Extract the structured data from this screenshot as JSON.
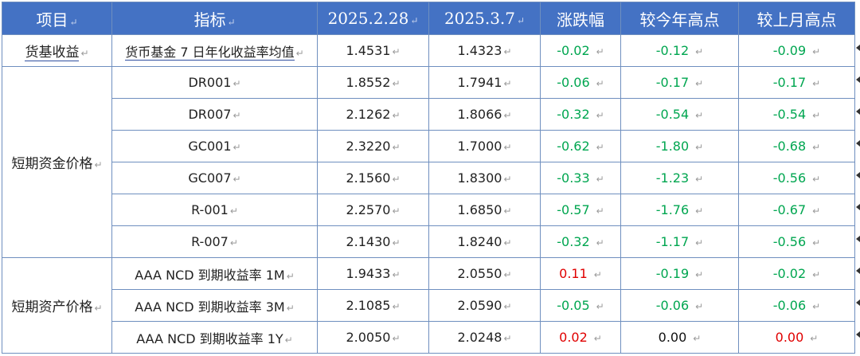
{
  "header": {
    "col_item": "项目",
    "col_indicator": "指标",
    "col_date1": "2025.2.28",
    "col_date2": "2025.3.7",
    "col_change": "涨跌幅",
    "col_vs_year_high": "较今年高点",
    "col_vs_month_high": "较上月高点"
  },
  "return_mark": "↵",
  "groups": [
    {
      "category": "货基收益",
      "rows": [
        {
          "indicator": "货币基金 7 日年化收益率均值",
          "date1": "1.4531",
          "date2": "1.4323",
          "change": "-0.02",
          "change_color": "green",
          "vs_year_high": "-0.12",
          "vs_year_high_color": "green",
          "vs_month_high": "-0.09",
          "vs_month_high_color": "green"
        }
      ]
    },
    {
      "category": "短期资金价格",
      "rows": [
        {
          "indicator": "DR001",
          "date1": "1.8552",
          "date2": "1.7941",
          "change": "-0.06",
          "change_color": "green",
          "vs_year_high": "-0.17",
          "vs_year_high_color": "green",
          "vs_month_high": "-0.17",
          "vs_month_high_color": "green"
        },
        {
          "indicator": "DR007",
          "date1": "2.1262",
          "date2": "1.8066",
          "change": "-0.32",
          "change_color": "green",
          "vs_year_high": "-0.54",
          "vs_year_high_color": "green",
          "vs_month_high": "-0.54",
          "vs_month_high_color": "green"
        },
        {
          "indicator": "GC001",
          "date1": "2.3220",
          "date2": "1.7000",
          "change": "-0.62",
          "change_color": "green",
          "vs_year_high": "-1.80",
          "vs_year_high_color": "green",
          "vs_month_high": "-0.68",
          "vs_month_high_color": "green"
        },
        {
          "indicator": "GC007",
          "date1": "2.1560",
          "date2": "1.8300",
          "change": "-0.33",
          "change_color": "green",
          "vs_year_high": "-1.23",
          "vs_year_high_color": "green",
          "vs_month_high": "-0.56",
          "vs_month_high_color": "green"
        },
        {
          "indicator": "R-001",
          "date1": "2.2570",
          "date2": "1.6850",
          "change": "-0.57",
          "change_color": "green",
          "vs_year_high": "-1.76",
          "vs_year_high_color": "green",
          "vs_month_high": "-0.67",
          "vs_month_high_color": "green"
        },
        {
          "indicator": "R-007",
          "date1": "2.1430",
          "date2": "1.8240",
          "change": "-0.32",
          "change_color": "green",
          "vs_year_high": "-1.17",
          "vs_year_high_color": "green",
          "vs_month_high": "-0.56",
          "vs_month_high_color": "green"
        }
      ]
    },
    {
      "category": "短期资产价格",
      "rows": [
        {
          "indicator": "AAA NCD 到期收益率 1M",
          "date1": "1.9433",
          "date2": "2.0550",
          "change": "0.11",
          "change_color": "red",
          "vs_year_high": "-0.19",
          "vs_year_high_color": "green",
          "vs_month_high": "-0.02",
          "vs_month_high_color": "green"
        },
        {
          "indicator": "AAA NCD 到期收益率 3M",
          "date1": "2.1085",
          "date2": "2.0590",
          "change": "-0.05",
          "change_color": "green",
          "vs_year_high": "-0.06",
          "vs_year_high_color": "green",
          "vs_month_high": "-0.06",
          "vs_month_high_color": "green"
        },
        {
          "indicator": "AAA NCD 到期收益率 1Y",
          "date1": "2.0050",
          "date2": "2.0248",
          "change": "0.02",
          "change_color": "red",
          "vs_year_high": "0.00",
          "vs_year_high_color": "black",
          "vs_month_high": "0.00",
          "vs_month_high_color": "red"
        }
      ]
    }
  ]
}
